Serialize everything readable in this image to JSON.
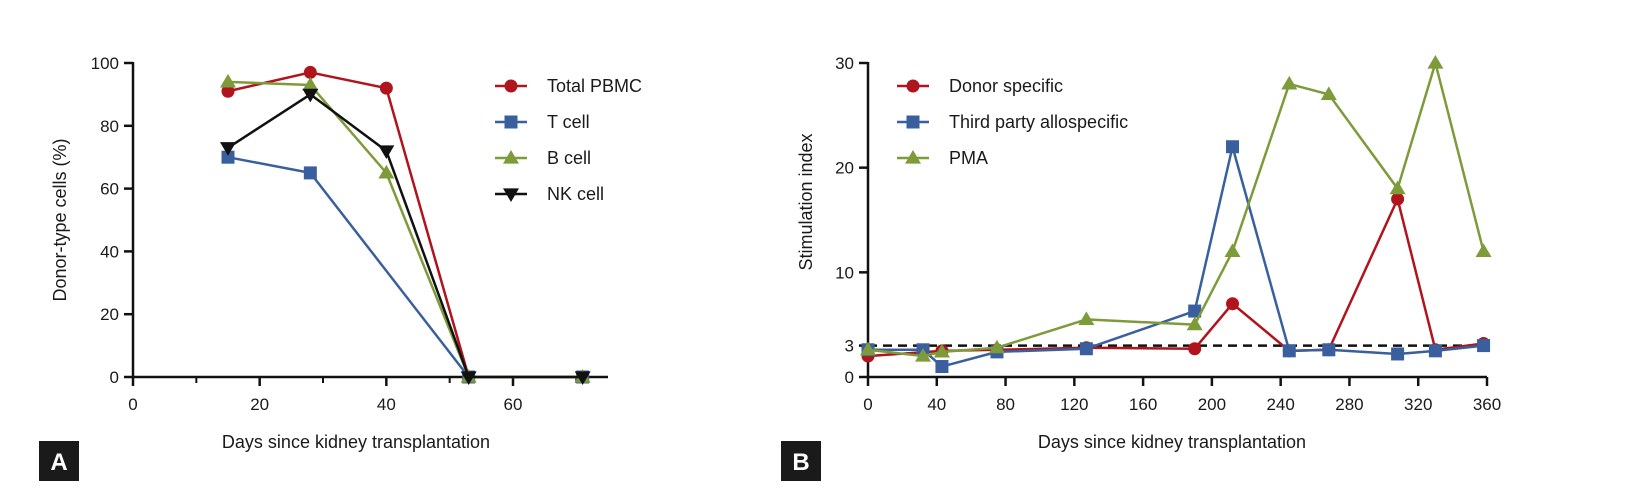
{
  "colors": {
    "red": "#b0141c",
    "blue": "#3a5f9e",
    "green": "#7e9b3a",
    "black": "#111111",
    "badge_bg": "#1a1a1a"
  },
  "chart_data": [
    {
      "type": "line",
      "panel_label": "A",
      "xlabel": "Days since kidney transplantation",
      "ylabel": "Donor-type cells (%)",
      "xlim": [
        0,
        75
      ],
      "ylim": [
        0,
        100
      ],
      "xticks": [
        0,
        20,
        40,
        60
      ],
      "xminor": [
        10,
        30,
        50,
        70
      ],
      "yticks": [
        0,
        20,
        40,
        60,
        80,
        100
      ],
      "legend_position": "top-right",
      "series": [
        {
          "name": "Total PBMC",
          "color": "red",
          "marker": "circle",
          "x": [
            15,
            28,
            40,
            53,
            71
          ],
          "values": [
            91,
            97,
            92,
            0,
            0
          ]
        },
        {
          "name": "T cell",
          "color": "blue",
          "marker": "square",
          "x": [
            15,
            28,
            53,
            71
          ],
          "values": [
            70,
            65,
            0,
            0
          ]
        },
        {
          "name": "B cell",
          "color": "green",
          "marker": "triangle-up",
          "x": [
            15,
            28,
            40,
            53,
            71
          ],
          "values": [
            94,
            93,
            65,
            0,
            0
          ]
        },
        {
          "name": "NK cell",
          "color": "black",
          "marker": "triangle-down",
          "x": [
            15,
            28,
            40,
            53,
            71
          ],
          "values": [
            73,
            90,
            72,
            0,
            0
          ]
        }
      ]
    },
    {
      "type": "line",
      "panel_label": "B",
      "xlabel": "Days since kidney transplantation",
      "ylabel": "Stimulation index",
      "xlim": [
        0,
        360
      ],
      "ylim": [
        0,
        30
      ],
      "xticks": [
        0,
        40,
        80,
        120,
        160,
        200,
        240,
        280,
        320,
        360
      ],
      "yticks": [
        0,
        3,
        10,
        20,
        30
      ],
      "reference_line": {
        "y": 3,
        "style": "dashed"
      },
      "legend_position": "top-left",
      "series": [
        {
          "name": "Donor specific",
          "color": "red",
          "marker": "circle",
          "x": [
            0,
            43,
            75,
            127,
            190,
            212,
            245,
            268,
            308,
            330,
            358
          ],
          "values": [
            2.0,
            2.5,
            2.6,
            2.8,
            2.7,
            7.0,
            2.5,
            2.6,
            17.0,
            2.6,
            3.2
          ]
        },
        {
          "name": "Third party allospecific",
          "color": "blue",
          "marker": "square",
          "x": [
            0,
            32,
            43,
            75,
            127,
            190,
            212,
            245,
            268,
            308,
            330,
            358
          ],
          "values": [
            2.6,
            2.6,
            1.0,
            2.4,
            2.7,
            6.3,
            22.0,
            2.5,
            2.6,
            2.2,
            2.5,
            3.0
          ]
        },
        {
          "name": "PMA",
          "color": "green",
          "marker": "triangle-up",
          "x": [
            0,
            32,
            43,
            75,
            127,
            190,
            212,
            245,
            268,
            308,
            330,
            358
          ],
          "values": [
            2.6,
            2.0,
            2.4,
            2.8,
            5.5,
            5.0,
            12.0,
            28.0,
            27.0,
            18.0,
            30.0,
            12.0
          ]
        }
      ]
    }
  ]
}
